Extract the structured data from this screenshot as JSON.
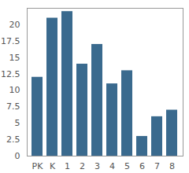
{
  "chart_data": {
    "type": "bar",
    "categories": [
      "PK",
      "K",
      "1",
      "2",
      "3",
      "4",
      "5",
      "6",
      "7",
      "8"
    ],
    "values": [
      12,
      21,
      22,
      14,
      17,
      11,
      13,
      3,
      6,
      7
    ],
    "color": "#3a6a8e",
    "ylim": [
      0,
      22.5
    ],
    "yticks": [
      0,
      2.5,
      5,
      7.5,
      10,
      12.5,
      15,
      17.5,
      20
    ],
    "grid": false
  }
}
